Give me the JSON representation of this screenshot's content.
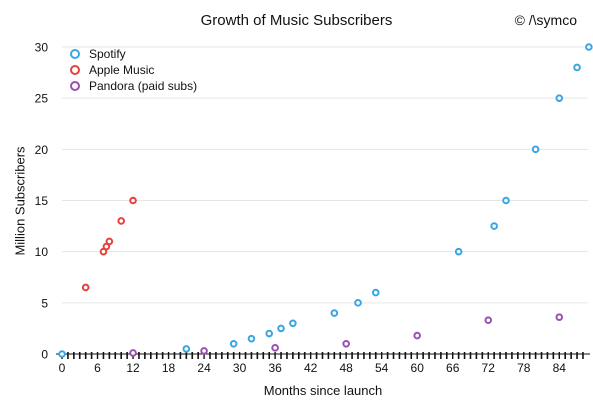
{
  "chart_data": {
    "type": "scatter",
    "title": "Growth of Music Subscribers",
    "credit": "© /\\symco",
    "xlabel": "Months since launch",
    "ylabel": "Million Subscribers",
    "xlim": [
      0,
      87
    ],
    "ylim": [
      0,
      30
    ],
    "x_ticks": [
      0,
      6,
      12,
      18,
      24,
      30,
      36,
      42,
      48,
      54,
      60,
      66,
      72,
      78,
      84
    ],
    "y_ticks": [
      0,
      5,
      10,
      15,
      20,
      25,
      30
    ],
    "grid": "horizontal",
    "legend_position": "top-left",
    "series": [
      {
        "name": "Spotify",
        "color": "#3aa6e0",
        "points": [
          [
            0,
            0
          ],
          [
            21,
            0.5
          ],
          [
            29,
            1
          ],
          [
            32,
            1.5
          ],
          [
            35,
            2
          ],
          [
            37,
            2.5
          ],
          [
            39,
            3
          ],
          [
            46,
            4
          ],
          [
            50,
            5
          ],
          [
            53,
            6
          ],
          [
            67,
            10
          ],
          [
            73,
            12.5
          ],
          [
            75,
            15
          ],
          [
            80,
            20
          ],
          [
            84,
            25
          ],
          [
            87,
            28
          ],
          [
            89,
            30
          ]
        ]
      },
      {
        "name": "Apple Music",
        "color": "#e8403a",
        "points": [
          [
            4,
            6.5
          ],
          [
            7,
            10
          ],
          [
            7.5,
            10.5
          ],
          [
            8,
            11
          ],
          [
            10,
            13
          ],
          [
            12,
            15
          ]
        ]
      },
      {
        "name": "Pandora (paid subs)",
        "color": "#9b4fb0",
        "points": [
          [
            12,
            0.1
          ],
          [
            24,
            0.3
          ],
          [
            36,
            0.6
          ],
          [
            48,
            1
          ],
          [
            60,
            1.8
          ],
          [
            72,
            3.3
          ],
          [
            84,
            3.6
          ]
        ]
      }
    ]
  }
}
